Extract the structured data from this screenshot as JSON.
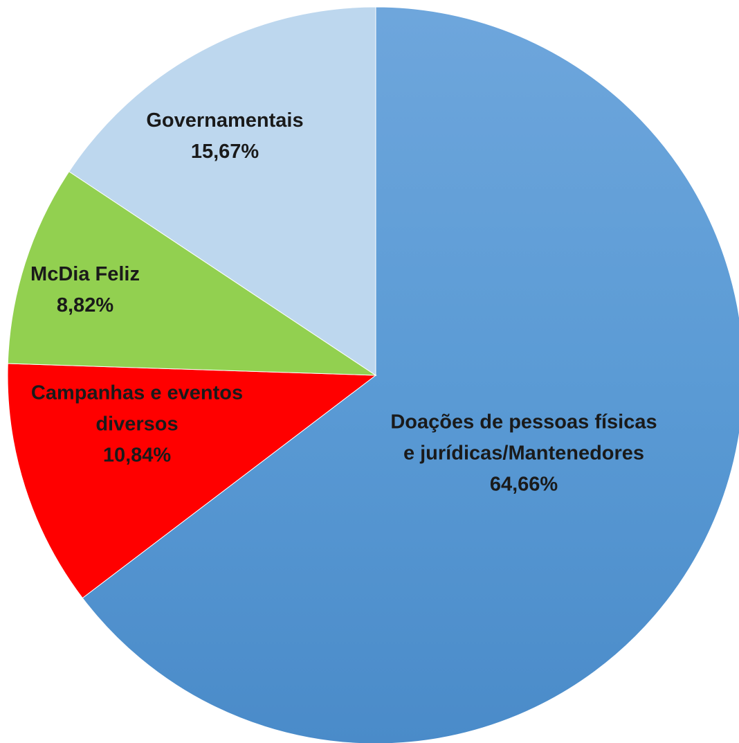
{
  "chart_data": {
    "type": "pie",
    "start_angle_deg": 0,
    "direction": "clockwise",
    "slices": [
      {
        "category_lines": [
          "Doações de pessoas físicas",
          "e jurídicas/Mantenedores"
        ],
        "value": 64.66,
        "value_label": "64,66%",
        "color": "#5b9bd5",
        "color_light": "#6ea6dc",
        "color_dark": "#4a8bc9"
      },
      {
        "category_lines": [
          "Campanhas e eventos",
          "diversos"
        ],
        "value": 10.84,
        "value_label": "10,84%",
        "color": "#ff0000",
        "color_light": "#ff0000",
        "color_dark": "#ff0000"
      },
      {
        "category_lines": [
          "McDia Feliz"
        ],
        "value": 8.82,
        "value_label": "8,82%",
        "color": "#92d050",
        "color_light": "#92d050",
        "color_dark": "#92d050"
      },
      {
        "category_lines": [
          "Governamentais"
        ],
        "value": 15.67,
        "value_label": "15,67%",
        "color": "#bdd7ee",
        "color_light": "#bdd7ee",
        "color_dark": "#bdd7ee"
      }
    ]
  }
}
